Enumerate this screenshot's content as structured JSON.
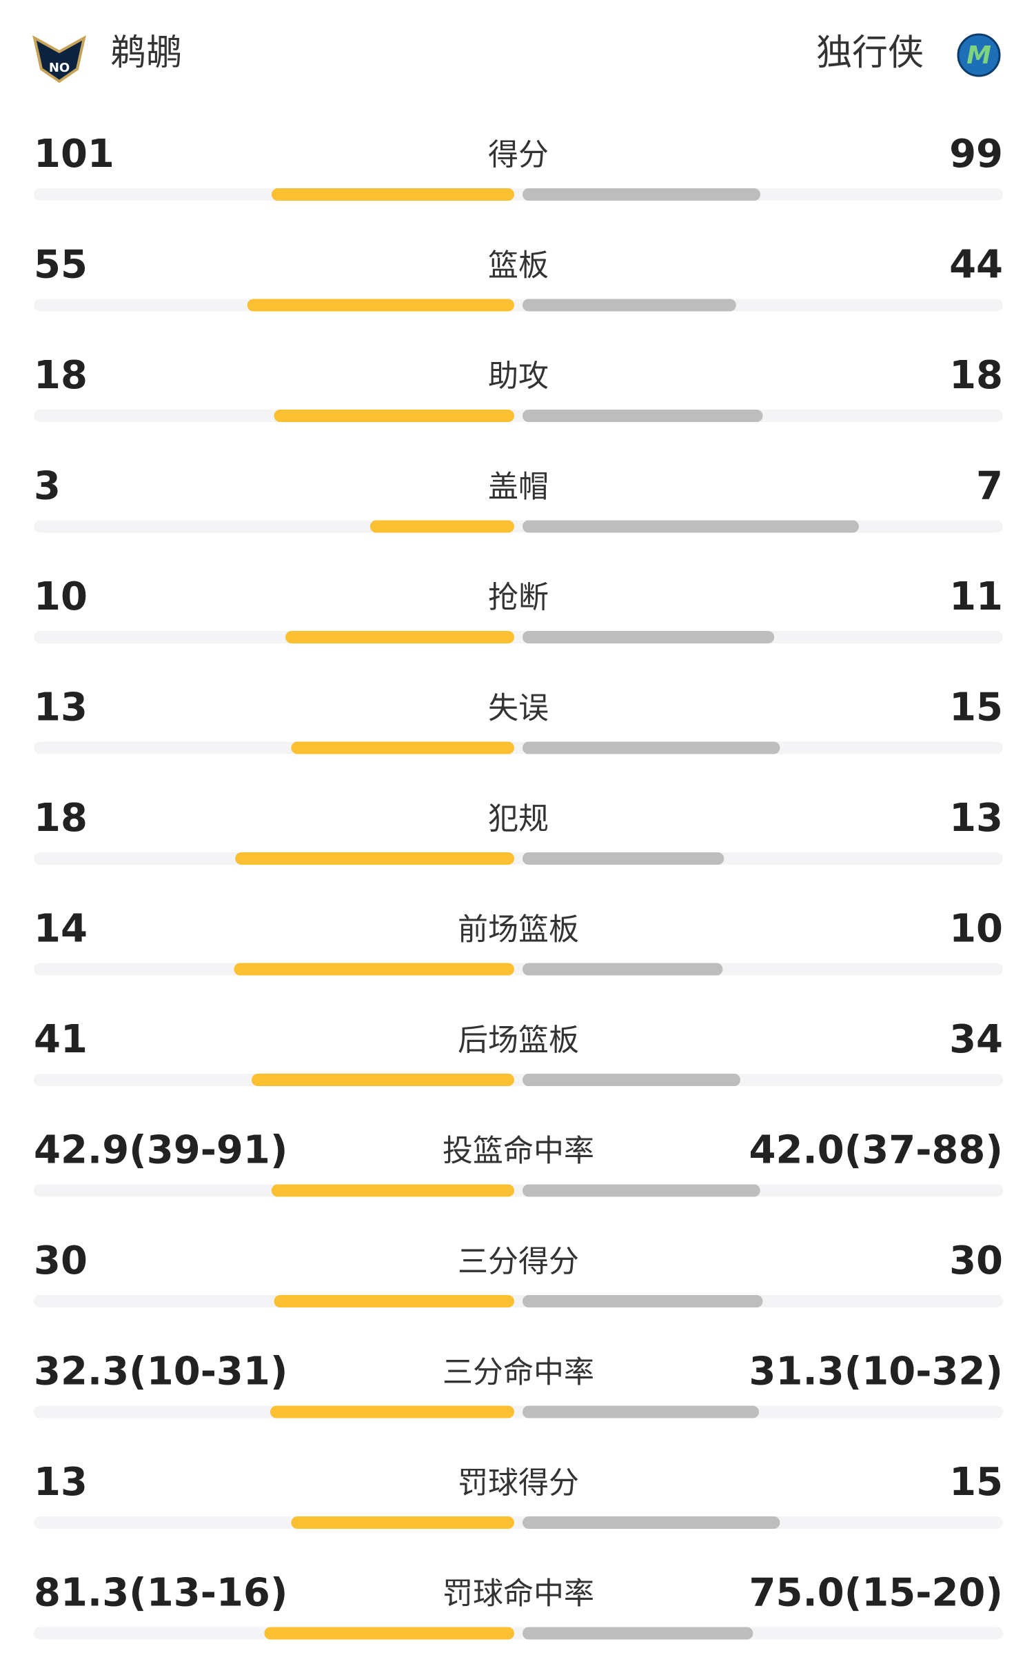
{
  "header": {
    "home_team": "鹈鹕",
    "away_team": "独行侠"
  },
  "stats": [
    {
      "label": "得分",
      "home": 101,
      "away": 99
    },
    {
      "label": "篮板",
      "home": 55,
      "away": 44
    },
    {
      "label": "助攻",
      "home": 18,
      "away": 18
    },
    {
      "label": "盖帽",
      "home": 3,
      "away": 7
    },
    {
      "label": "抢断",
      "home": 10,
      "away": 11
    },
    {
      "label": "失误",
      "home": 13,
      "away": 15
    },
    {
      "label": "犯规",
      "home": 18,
      "away": 13
    },
    {
      "label": "前场篮板",
      "home": 14,
      "away": 10
    },
    {
      "label": "后场篮板",
      "home": 41,
      "away": 34
    },
    {
      "label": "投篮命中率",
      "home": {
        "value": 42.9,
        "label": "42.9(39-91)"
      },
      "away": {
        "value": 42.0,
        "label": "42.0(37-88)"
      }
    },
    {
      "label": "三分得分",
      "home": 30,
      "away": 30
    },
    {
      "label": "三分命中率",
      "home": {
        "value": 32.3,
        "label": "32.3(10-31)"
      },
      "away": {
        "value": 31.3,
        "label": "31.3(10-32)"
      }
    },
    {
      "label": "罚球得分",
      "home": 13,
      "away": 15
    },
    {
      "label": "罚球命中率",
      "home": {
        "value": 81.3,
        "label": "81.3(13-16)"
      },
      "away": {
        "value": 75.0,
        "label": "75.0(15-20)"
      }
    }
  ]
}
